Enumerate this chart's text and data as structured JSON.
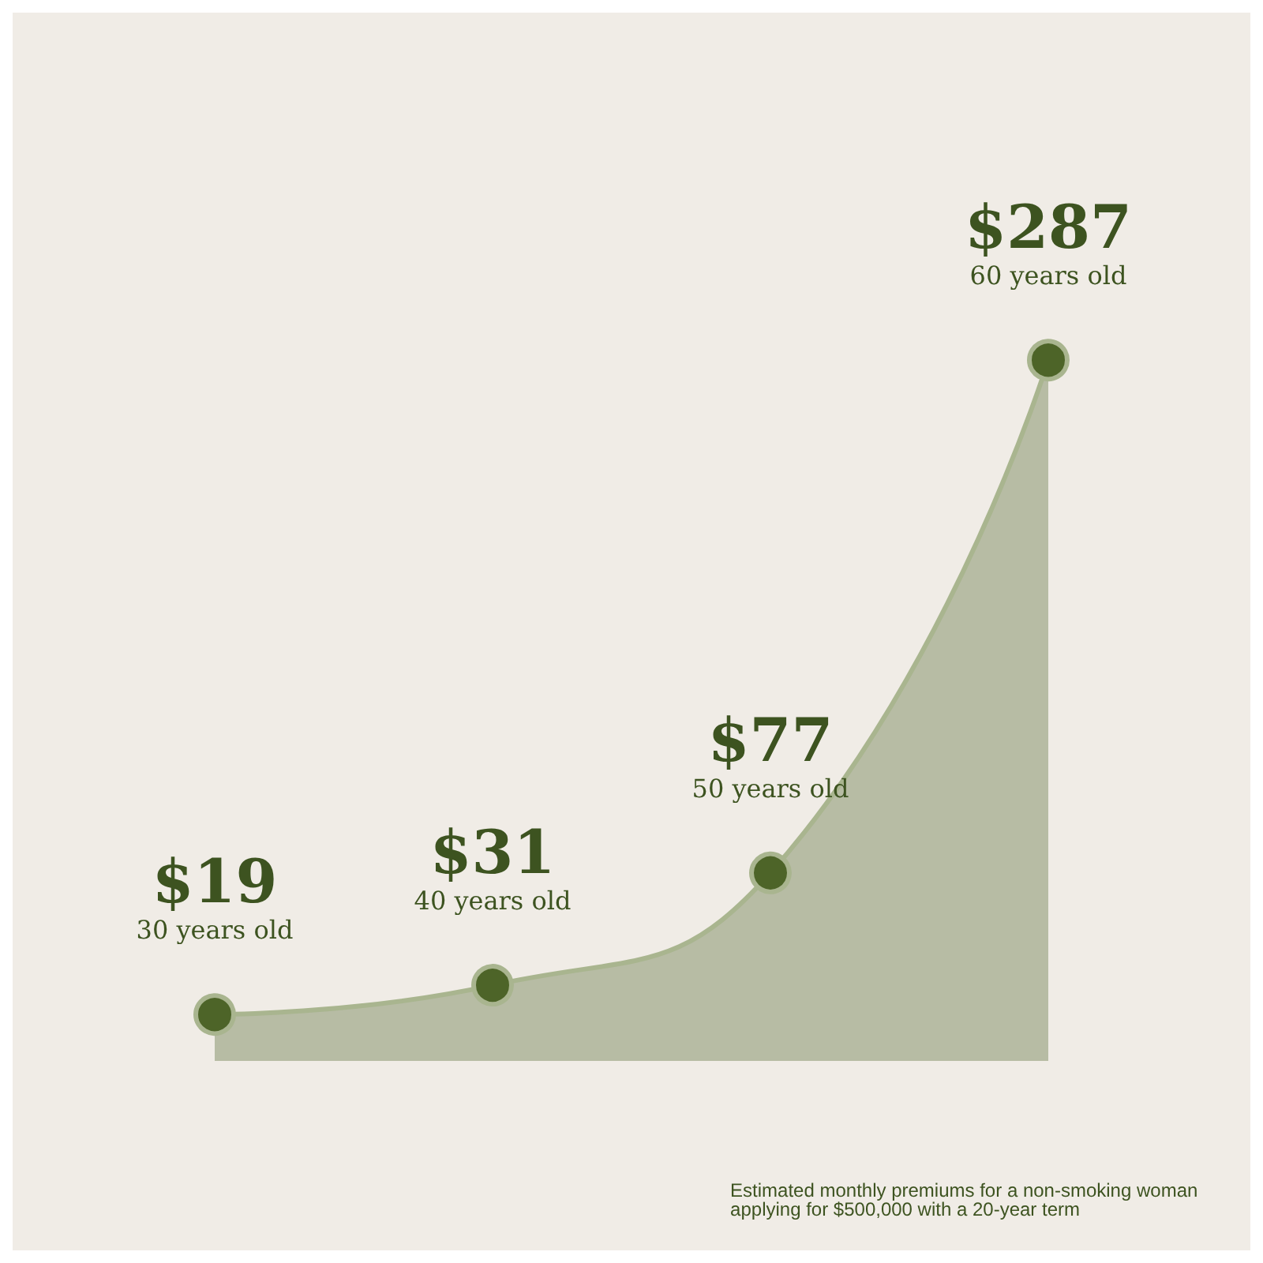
{
  "chart_data": {
    "type": "area",
    "categories": [
      null,
      null,
      null,
      null
    ],
    "series": [
      {
        "color": "#4d6428",
        "values": [
          19,
          31,
          77,
          287
        ],
        "value_labels": [
          "$19\n30 years old",
          "$31\n40 years old",
          "$77\n50 years old",
          "$287\n60 years old"
        ]
      }
    ],
    "marker": "circle",
    "tick_labels": false,
    "grid": false,
    "annotations": [
      "Estimated monthly premiums for a non-smoking woman applying for $500,000 with a 20-year term"
    ]
  }
}
